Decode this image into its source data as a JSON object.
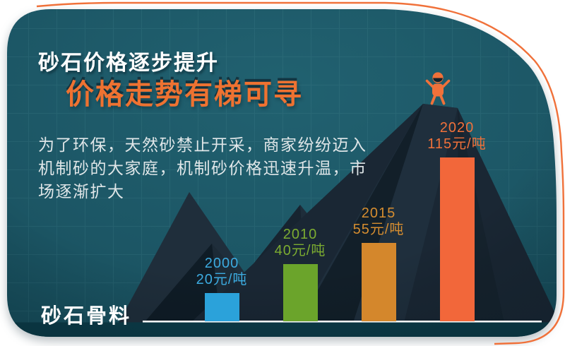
{
  "header": {
    "title": "砂石价格逐步提升",
    "subtitle": "价格走势有梯可寻"
  },
  "intro": {
    "text": "为了环保，天然砂禁止开采，商家纷纷迈入\n机制砂的大家庭，机制砂价格迅速升温，市\n场逐渐扩大"
  },
  "footer": {
    "brand": "砂石骨料"
  },
  "icons": {
    "climber": "climber-icon"
  },
  "colors": {
    "card_background": "#1d5765",
    "accent_orange": "#ee7231",
    "title_white": "#ffffff",
    "body_text": "#dfe6e8",
    "baseline": "#f1f5f5",
    "below_baseline_band": "#0c3c49",
    "mountain_dark": "#1a2734"
  },
  "chart_data": {
    "type": "bar",
    "title": "价格走势有梯可寻",
    "categories": [
      "2000",
      "2010",
      "2015",
      "2020"
    ],
    "values": [
      20,
      40,
      55,
      115
    ],
    "unit": "元/吨",
    "value_labels": [
      "20元/吨",
      "40元/吨",
      "55元/吨",
      "115元/吨"
    ],
    "bar_colors": [
      "#2ba2da",
      "#6ba42b",
      "#d4872c",
      "#f2673a"
    ],
    "label_colors": [
      "#3cabe0",
      "#7cac31",
      "#d58d30",
      "#f0713a"
    ],
    "ylim": [
      0,
      120
    ],
    "legend": false,
    "grid": true,
    "xlabel": "",
    "ylabel": ""
  }
}
